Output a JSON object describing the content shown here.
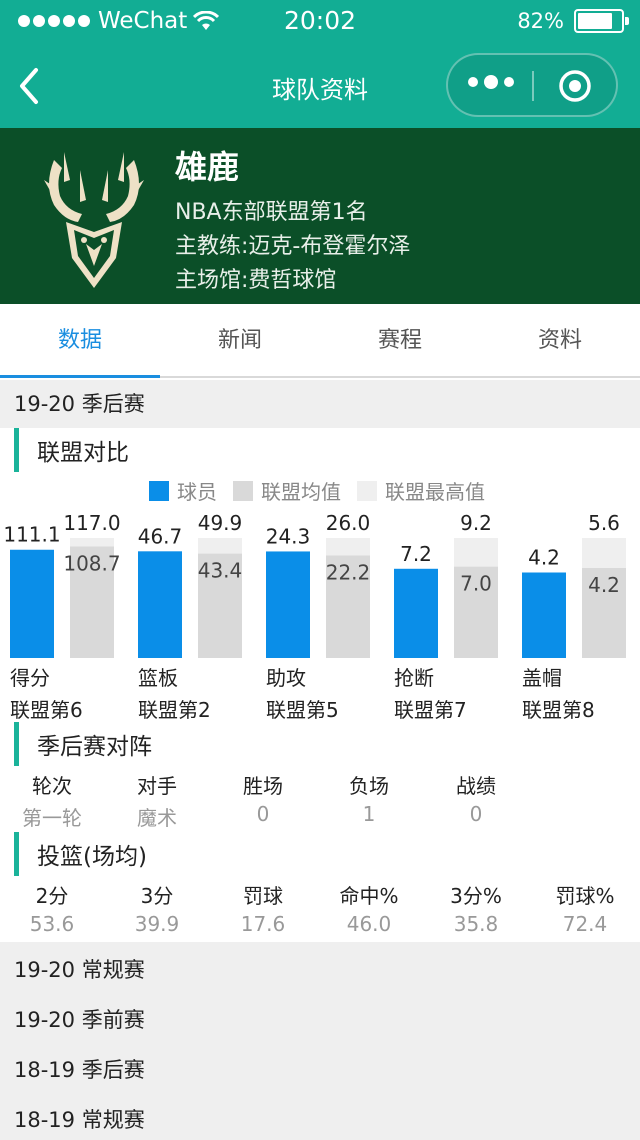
{
  "status_bar": {
    "carrier": "WeChat",
    "time": "20:02",
    "battery": "82%",
    "battery_level": 0.82
  },
  "nav": {
    "title": "球队资料"
  },
  "team": {
    "name": "雄鹿",
    "rank": "NBA东部联盟第1名",
    "coach": "主教练:迈克-布登霍尔泽",
    "arena": "主场馆:费哲球馆"
  },
  "tabs": [
    {
      "label": "数据",
      "active": true
    },
    {
      "label": "新闻",
      "active": false
    },
    {
      "label": "赛程",
      "active": false
    },
    {
      "label": "资料",
      "active": false
    }
  ],
  "season_header": "19-20 季后赛",
  "league_compare": {
    "title": "联盟对比",
    "legend": [
      "球员",
      "联盟均值",
      "联盟最高值"
    ],
    "colors": {
      "player": "#0a8ee8",
      "avg": "#d9d9d9",
      "max": "#efefef"
    }
  },
  "chart_data": {
    "type": "bar",
    "categories": [
      "得分",
      "篮板",
      "助攻",
      "抢断",
      "盖帽"
    ],
    "series": [
      {
        "name": "球员",
        "values": [
          111.1,
          46.7,
          24.3,
          7.2,
          4.2
        ]
      },
      {
        "name": "联盟均值",
        "values": [
          108.7,
          43.4,
          22.2,
          7.0,
          4.2
        ]
      },
      {
        "name": "联盟最高值",
        "values": [
          117.0,
          49.9,
          26.0,
          9.2,
          5.6
        ]
      }
    ],
    "ranks": [
      "联盟第6",
      "联盟第2",
      "联盟第5",
      "联盟第7",
      "联盟第8"
    ]
  },
  "playoff_matchup": {
    "title": "季后赛对阵",
    "headers": [
      "轮次",
      "对手",
      "胜场",
      "负场",
      "战绩"
    ],
    "row": [
      "第一轮",
      "魔术",
      "0",
      "1",
      "0"
    ]
  },
  "shooting": {
    "title": "投篮(场均)",
    "headers": [
      "2分",
      "3分",
      "罚球",
      "命中%",
      "3分%",
      "罚球%"
    ],
    "values": [
      "53.6",
      "39.9",
      "17.6",
      "46.0",
      "35.8",
      "72.4"
    ]
  },
  "season_links": [
    "19-20 常规赛",
    "19-20 季前赛",
    "18-19 季后赛",
    "18-19 常规赛"
  ]
}
